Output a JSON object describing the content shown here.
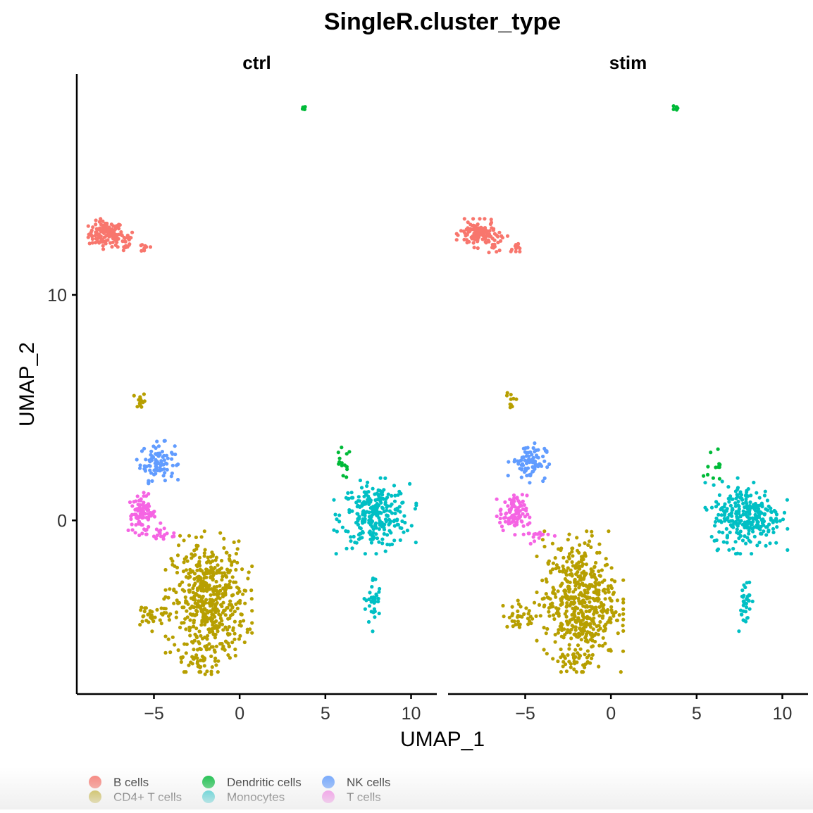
{
  "chart_data": {
    "type": "scatter",
    "title": "SingleR.cluster_type",
    "xlabel": "UMAP_1",
    "ylabel": "UMAP_2",
    "xlim": [
      -9.5,
      11.5
    ],
    "ylim": [
      -7.7,
      19.8
    ],
    "x_ticks": [
      -5,
      0,
      5,
      10
    ],
    "x_tick_labels": [
      "−5",
      "0",
      "5",
      "10"
    ],
    "y_ticks": [
      0,
      10
    ],
    "y_tick_labels": [
      "0",
      "10"
    ],
    "grid": false,
    "legend_position": "bottom-left",
    "panels": [
      {
        "id": "ctrl",
        "label": "ctrl"
      },
      {
        "id": "stim",
        "label": "stim"
      }
    ],
    "series": [
      {
        "name": "B cells",
        "color": "#F8766D"
      },
      {
        "name": "CD4+ T cells",
        "color": "#B79F00"
      },
      {
        "name": "Dendritic cells",
        "color": "#00BA38"
      },
      {
        "name": "Monocytes",
        "color": "#00BFC4"
      },
      {
        "name": "NK cells",
        "color": "#619CFF"
      },
      {
        "name": "T cells",
        "color": "#F564E3"
      }
    ],
    "clusters": [
      {
        "series": "B cells",
        "cx": -7.8,
        "cy": 12.7,
        "sx": 0.5,
        "sy": 0.28,
        "ctrl": 120,
        "stim": 110
      },
      {
        "series": "B cells",
        "cx": -6.8,
        "cy": 12.4,
        "sx": 0.35,
        "sy": 0.25,
        "ctrl": 25,
        "stim": 20
      },
      {
        "series": "B cells",
        "cx": -5.5,
        "cy": 12.1,
        "sx": 0.25,
        "sy": 0.12,
        "ctrl": 10,
        "stim": 10
      },
      {
        "series": "Dendritic cells",
        "cx": 3.8,
        "cy": 18.3,
        "sx": 0.06,
        "sy": 0.06,
        "ctrl": 6,
        "stim": 6
      },
      {
        "series": "CD4+ T cells",
        "cx": -5.8,
        "cy": 5.3,
        "sx": 0.15,
        "sy": 0.2,
        "ctrl": 15,
        "stim": 10
      },
      {
        "series": "NK cells",
        "cx": -4.8,
        "cy": 2.6,
        "sx": 0.5,
        "sy": 0.4,
        "ctrl": 90,
        "stim": 85
      },
      {
        "series": "T cells",
        "cx": -5.7,
        "cy": 0.3,
        "sx": 0.4,
        "sy": 0.4,
        "ctrl": 90,
        "stim": 90
      },
      {
        "series": "T cells",
        "cx": -4.4,
        "cy": -0.6,
        "sx": 0.5,
        "sy": 0.2,
        "ctrl": 18,
        "stim": 18
      },
      {
        "series": "Dendritic cells",
        "cx": 6.0,
        "cy": 2.5,
        "sx": 0.25,
        "sy": 0.35,
        "ctrl": 14,
        "stim": 12
      },
      {
        "series": "Monocytes",
        "cx": 7.9,
        "cy": 0.2,
        "sx": 1.0,
        "sy": 0.7,
        "ctrl": 270,
        "stim": 280
      },
      {
        "series": "Monocytes",
        "cx": 7.8,
        "cy": -3.6,
        "sx": 0.22,
        "sy": 0.55,
        "ctrl": 35,
        "stim": 35
      },
      {
        "series": "CD4+ T cells",
        "cx": -1.8,
        "cy": -3.6,
        "sx": 1.05,
        "sy": 1.3,
        "ctrl": 520,
        "stim": 520
      },
      {
        "series": "CD4+ T cells",
        "cx": -5.1,
        "cy": -4.2,
        "sx": 0.6,
        "sy": 0.3,
        "ctrl": 35,
        "stim": 35
      },
      {
        "series": "CD4+ T cells",
        "cx": -2.2,
        "cy": -6.1,
        "sx": 0.5,
        "sy": 0.3,
        "ctrl": 30,
        "stim": 30
      }
    ]
  }
}
